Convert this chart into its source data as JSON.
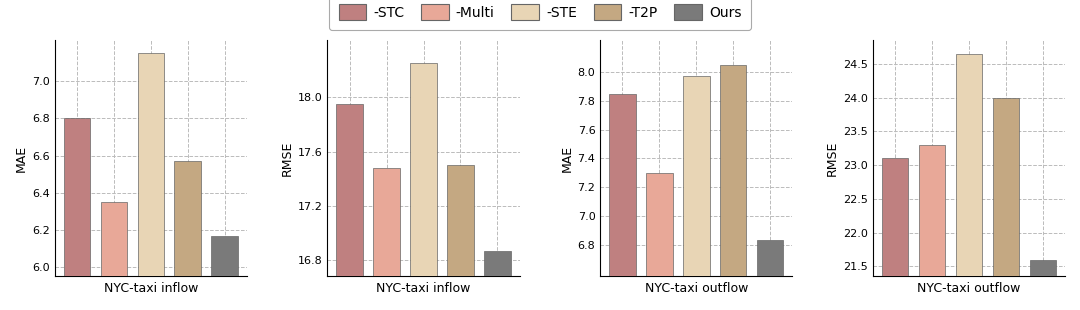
{
  "subplots": [
    {
      "title": "NYC-taxi inflow",
      "ylabel": "MAE",
      "values": [
        6.8,
        6.35,
        7.15,
        6.57,
        6.17
      ],
      "ylim": [
        5.95,
        7.22
      ],
      "yticks": [
        6.0,
        6.2,
        6.4,
        6.6,
        6.8,
        7.0
      ]
    },
    {
      "title": "NYC-taxi inflow",
      "ylabel": "RMSE",
      "values": [
        17.95,
        17.48,
        18.25,
        17.5,
        16.87
      ],
      "ylim": [
        16.68,
        18.42
      ],
      "yticks": [
        16.8,
        17.2,
        17.6,
        18.0
      ]
    },
    {
      "title": "NYC-taxi outflow",
      "ylabel": "MAE",
      "values": [
        7.85,
        7.3,
        7.97,
        8.05,
        6.83
      ],
      "ylim": [
        6.58,
        8.22
      ],
      "yticks": [
        6.8,
        7.0,
        7.2,
        7.4,
        7.6,
        7.8,
        8.0
      ]
    },
    {
      "title": "NYC-taxi outflow",
      "ylabel": "RMSE",
      "values": [
        23.1,
        23.3,
        24.65,
        24.0,
        21.6
      ],
      "ylim": [
        21.35,
        24.85
      ],
      "yticks": [
        21.5,
        22.0,
        22.5,
        23.0,
        23.5,
        24.0,
        24.5
      ]
    }
  ],
  "bar_colors": [
    "#bf8080",
    "#e8a898",
    "#e8d5b5",
    "#c4a882",
    "#7a7a7a"
  ],
  "legend_labels": [
    "-STC",
    "-Multi",
    "-STE",
    "-T2P",
    "Ours"
  ],
  "figsize": [
    10.8,
    3.1
  ],
  "dpi": 100,
  "background_color": "#ffffff"
}
